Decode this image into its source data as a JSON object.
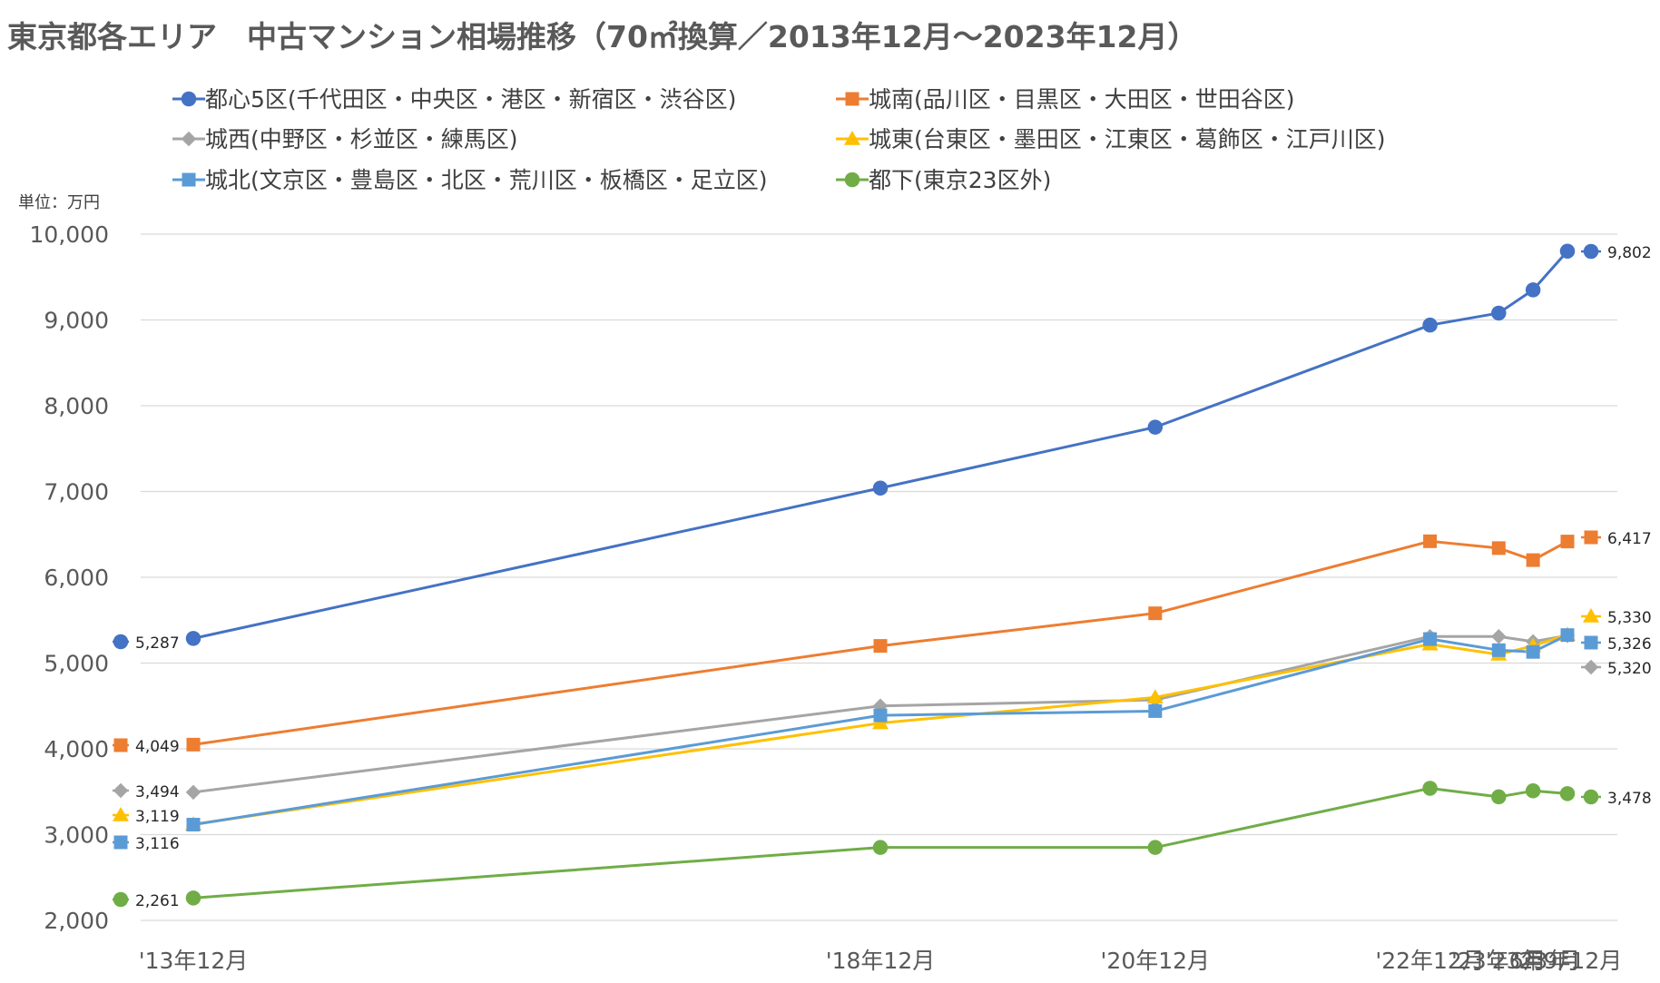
{
  "chart_data": {
    "type": "line",
    "title": "東京都各エリア　中古マンション相場推移（70㎡換算／2013年12月～2023年12月）",
    "unit_label": "単位：万円",
    "categories": [
      "'13年12月",
      "'18年12月",
      "'20年12月",
      "'22年12月",
      "'23年6月",
      "'23年9月",
      "'23年12月"
    ],
    "x_months": [
      0,
      60,
      84,
      108,
      114,
      117,
      120
    ],
    "ylim": [
      2000,
      10000
    ],
    "yticks": [
      "2,000",
      "3,000",
      "4,000",
      "5,000",
      "6,000",
      "7,000",
      "8,000",
      "9,000",
      "10,000"
    ],
    "grid": true,
    "legend_position": "top",
    "series": [
      {
        "name": "都心5区(千代田区・中央区・港区・新宿区・渋谷区)",
        "color": "#4472C4",
        "marker": "circle",
        "values": [
          5287,
          7040,
          7750,
          8940,
          9080,
          9350,
          9802
        ],
        "start_label": "5,287",
        "end_label": "9,802"
      },
      {
        "name": "城南(品川区・目黒区・大田区・世田谷区)",
        "color": "#ED7D31",
        "marker": "square",
        "values": [
          4049,
          5200,
          5580,
          6420,
          6340,
          6200,
          6417
        ],
        "start_label": "4,049",
        "end_label": "6,417"
      },
      {
        "name": "城西(中野区・杉並区・練馬区)",
        "color": "#A5A5A5",
        "marker": "diamond",
        "values": [
          3494,
          4500,
          4570,
          5310,
          5310,
          5250,
          5320
        ],
        "start_label": "3,494",
        "end_label": "5,320"
      },
      {
        "name": "城東(台東区・墨田区・江東区・葛飾区・江戸川区)",
        "color": "#FFC000",
        "marker": "triangle",
        "values": [
          3119,
          4300,
          4600,
          5220,
          5100,
          5200,
          5330
        ],
        "start_label": "3,119",
        "end_label": "5,330"
      },
      {
        "name": "城北(文京区・豊島区・北区・荒川区・板橋区・足立区)",
        "color": "#5B9BD5",
        "marker": "square",
        "values": [
          3116,
          4390,
          4440,
          5280,
          5150,
          5130,
          5326
        ],
        "start_label": "3,116",
        "end_label": "5,326"
      },
      {
        "name": "都下(東京23区外)",
        "color": "#70AD47",
        "marker": "circle",
        "values": [
          2261,
          2850,
          2850,
          3540,
          3440,
          3510,
          3478
        ],
        "start_label": "2,261",
        "end_label": "3,478"
      }
    ]
  }
}
